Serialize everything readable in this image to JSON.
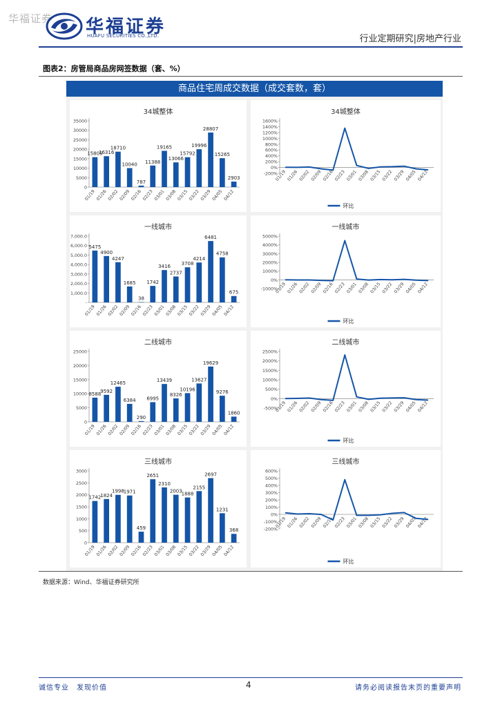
{
  "header": {
    "watermark": "华福证券",
    "brand_cn": "华福证券",
    "brand_en": "HUAFU SECURITIES CO.,LTD.",
    "report_type": "行业定期研究|房地产行业"
  },
  "figure": {
    "title": "图表2：房管局商品房网签数据（套、%）",
    "panel_title": "商品住宅周成交数据（成交套数，套）",
    "source": "数据来源：Wind、华福证券研究所"
  },
  "footer": {
    "left": "诚信专业　发现价值",
    "page": "4",
    "right": "请务必阅读报告末页的重要声明"
  },
  "colors": {
    "brand": "#1d3f93",
    "bar": "#1455a7",
    "line": "#1455a7"
  },
  "chart_data": [
    {
      "type": "bar",
      "title": "34城整体",
      "categories": [
        "01/19",
        "01/26",
        "02/02",
        "02/09",
        "02/16",
        "02/23",
        "03/01",
        "03/08",
        "03/15",
        "03/22",
        "03/29",
        "04/05",
        "04/12"
      ],
      "values": [
        15805,
        16316,
        18710,
        10040,
        787,
        11388,
        19165,
        13066,
        15792,
        19996,
        28807,
        15265,
        2903
      ],
      "labels": [
        "15805",
        "16316",
        "18710",
        "10040",
        "787",
        "11388",
        "19165",
        "13066",
        "15792",
        "19996",
        "28807",
        "15265",
        "2903"
      ],
      "yticks": [
        "0",
        "5000",
        "10000",
        "15000",
        "20000",
        "25000",
        "30000",
        "35000"
      ],
      "ylim": [
        0,
        35000
      ]
    },
    {
      "type": "line",
      "title": "34城整体",
      "categories": [
        "01/19",
        "01/26",
        "02/02",
        "02/09",
        "02/16",
        "02/23",
        "03/01",
        "03/08",
        "03/15",
        "03/22",
        "03/29",
        "04/05",
        "04/12"
      ],
      "series": [
        {
          "name": "环比",
          "values": [
            5,
            3,
            15,
            -46,
            -92,
            1347,
            68,
            -32,
            21,
            27,
            44,
            -47,
            -81
          ]
        }
      ],
      "yticks": [
        "-200%",
        "0%",
        "200%",
        "400%",
        "600%",
        "800%",
        "1000%",
        "1200%",
        "1400%",
        "1600%"
      ],
      "ylim": [
        -200,
        1600
      ],
      "legend": "bottom"
    },
    {
      "type": "bar",
      "title": "一线城市",
      "categories": [
        "01/19",
        "01/26",
        "02/02",
        "02/09",
        "02/16",
        "02/23",
        "03/01",
        "03/08",
        "03/15",
        "03/22",
        "03/29",
        "04/05",
        "04/12"
      ],
      "values": [
        5475,
        4900,
        4247,
        1685,
        38,
        1742,
        3416,
        2737,
        3708,
        4214,
        6481,
        4758,
        675
      ],
      "labels": [
        "5475",
        "4900",
        "4247",
        "1685",
        "38",
        "1742",
        "3416",
        "2737",
        "3708",
        "4214",
        "6481",
        "4758",
        "675"
      ],
      "yticks": [
        "-",
        "1,000.0",
        "2,000.0",
        "3,000.0",
        "4,000.0",
        "5,000.0",
        "6,000.0",
        "7,000.0"
      ],
      "ylim": [
        0,
        7000
      ]
    },
    {
      "type": "line",
      "title": "一线城市",
      "categories": [
        "01/19",
        "01/26",
        "02/02",
        "02/09",
        "02/16",
        "02/23",
        "03/01",
        "03/08",
        "03/15",
        "03/22",
        "03/29",
        "04/05",
        "04/12"
      ],
      "series": [
        {
          "name": "环比",
          "values": [
            2,
            -10,
            -13,
            -60,
            -98,
            4484,
            96,
            -20,
            35,
            14,
            54,
            -27,
            -86
          ]
        }
      ],
      "yticks": [
        "-1000%",
        "0%",
        "1000%",
        "2000%",
        "3000%",
        "4000%",
        "5000%"
      ],
      "ylim": [
        -1000,
        5000
      ],
      "legend": "bottom"
    },
    {
      "type": "bar",
      "title": "二线城市",
      "categories": [
        "01/19",
        "01/26",
        "02/02",
        "02/09",
        "02/16",
        "02/23",
        "03/01",
        "03/08",
        "03/15",
        "03/22",
        "03/29",
        "04/05",
        "04/12"
      ],
      "values": [
        8588,
        9592,
        12465,
        6384,
        290,
        6995,
        13439,
        8326,
        10196,
        13627,
        19629,
        9276,
        1860
      ],
      "labels": [
        "8588",
        "9592",
        "12465",
        "6384",
        "290",
        "6995",
        "13439",
        "8326",
        "10196",
        "13627",
        "19629",
        "9276",
        "1860"
      ],
      "yticks": [
        "0",
        "5000",
        "10000",
        "15000",
        "20000",
        "25000"
      ],
      "ylim": [
        0,
        25000
      ]
    },
    {
      "type": "line",
      "title": "二线城市",
      "categories": [
        "01/19",
        "01/26",
        "02/02",
        "02/09",
        "02/16",
        "02/23",
        "03/01",
        "03/08",
        "03/15",
        "03/22",
        "03/29",
        "04/05",
        "04/12"
      ],
      "series": [
        {
          "name": "环比",
          "values": [
            5,
            12,
            30,
            -49,
            -95,
            2312,
            92,
            -38,
            22,
            34,
            44,
            -53,
            -80
          ]
        }
      ],
      "yticks": [
        "-500%",
        "0%",
        "500%",
        "1000%",
        "1500%",
        "2000%",
        "2500%"
      ],
      "ylim": [
        -500,
        2500
      ],
      "legend": "bottom"
    },
    {
      "type": "bar",
      "title": "三线城市",
      "categories": [
        "01/19",
        "01/26",
        "02/02",
        "02/09",
        "02/16",
        "02/23",
        "03/01",
        "03/08",
        "03/15",
        "03/22",
        "03/29",
        "04/05",
        "04/12"
      ],
      "values": [
        1742,
        1824,
        1998,
        1971,
        459,
        2651,
        2310,
        2003,
        1888,
        2155,
        2697,
        1231,
        368
      ],
      "labels": [
        "1742",
        "1824",
        "1998",
        "1971",
        "459",
        "2651",
        "2310",
        "2003",
        "1888",
        "2155",
        "2697",
        "1231",
        "368"
      ],
      "yticks": [
        "0",
        "500",
        "1000",
        "1500",
        "2000",
        "2500",
        "3000"
      ],
      "ylim": [
        0,
        3000
      ]
    },
    {
      "type": "line",
      "title": "三线城市",
      "categories": [
        "01/19",
        "01/26",
        "02/02",
        "02/09",
        "02/16",
        "02/23",
        "03/01",
        "03/08",
        "03/15",
        "03/22",
        "03/29",
        "04/05",
        "04/12"
      ],
      "series": [
        {
          "name": "环比",
          "values": [
            21,
            5,
            10,
            -1,
            -77,
            478,
            -13,
            -13,
            -6,
            14,
            25,
            -54,
            -70
          ]
        }
      ],
      "yticks": [
        "-200%",
        "-100%",
        "0%",
        "100%",
        "200%",
        "300%",
        "400%",
        "500%",
        "600%"
      ],
      "ylim": [
        -200,
        600
      ],
      "legend": "bottom"
    }
  ]
}
